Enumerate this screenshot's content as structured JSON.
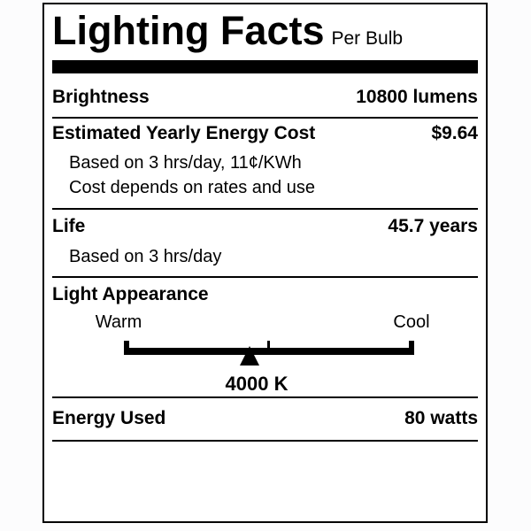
{
  "label": {
    "title": "Lighting Facts",
    "per_unit": "Per Bulb",
    "brightness": {
      "name": "Brightness",
      "value": "10800 lumens"
    },
    "energy_cost": {
      "name": "Estimated Yearly Energy Cost",
      "value": "$9.64",
      "notes": [
        "Based on 3 hrs/day, 11¢/KWh",
        "Cost depends on rates and use"
      ]
    },
    "life": {
      "name": "Life",
      "value": "45.7 years",
      "notes": [
        "Based on 3 hrs/day"
      ]
    },
    "light_appearance": {
      "name": "Light Appearance",
      "warm_label": "Warm",
      "cool_label": "Cool",
      "color_temperature": "4000 K"
    },
    "energy_used": {
      "name": "Energy Used",
      "value": "80 watts"
    },
    "colors": {
      "ink": "#000000",
      "paper": "#ffffff"
    }
  }
}
